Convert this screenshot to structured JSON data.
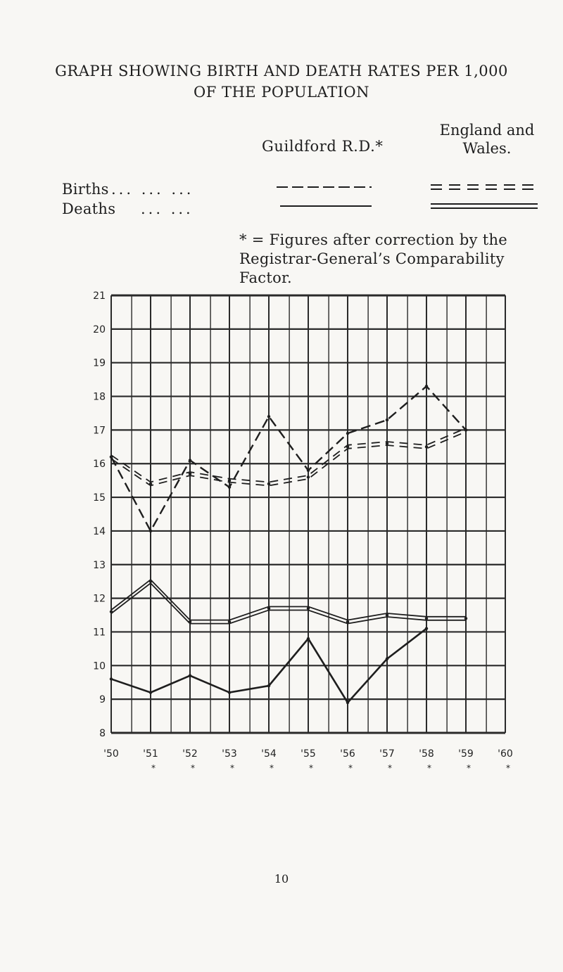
{
  "page": {
    "title_line1": "GRAPH SHOWING BIRTH AND DEATH RATES PER 1,000",
    "title_line2": "OF THE POPULATION",
    "page_number": "10"
  },
  "legend": {
    "col_guildford": "Guildford R.D.*",
    "col_england": "England and Wales.",
    "births_label": "Births",
    "deaths_label": "Deaths",
    "leader_dots": "... ... ...",
    "leader_dots_deaths": "... ...",
    "note": "* = Figures after correction by the Registrar-General’s Comparability Factor."
  },
  "colors": {
    "ink": "#1e1e1e",
    "grid": "#2a2a2a",
    "paper": "#f8f7f4"
  },
  "chart_data": {
    "type": "line",
    "title": "GRAPH SHOWING BIRTH AND DEATH RATES PER 1,000 OF THE POPULATION",
    "xlabel": "",
    "ylabel": "",
    "categories": [
      "'50",
      "'51",
      "'52",
      "'53",
      "'54",
      "'55",
      "'56",
      "'57",
      "'58",
      "'59",
      "'60"
    ],
    "asterisk_marks": [
      "",
      "*",
      "*",
      "*",
      "*",
      "*",
      "*",
      "*",
      "*",
      "*",
      "*"
    ],
    "ylim": [
      8,
      21
    ],
    "yticks": [
      8,
      9,
      10,
      11,
      12,
      13,
      14,
      15,
      16,
      17,
      18,
      19,
      20,
      21
    ],
    "grid": true,
    "series": [
      {
        "name": "Births",
        "group": "Guildford R.D.",
        "style": "dashed",
        "values": [
          16.2,
          14.0,
          16.1,
          15.3,
          17.4,
          15.8,
          16.9,
          17.3,
          18.3,
          17.0,
          null
        ]
      },
      {
        "name": "Births",
        "group": "England and Wales",
        "style": "double-dashed",
        "values": [
          16.2,
          15.4,
          15.7,
          15.5,
          15.4,
          15.6,
          16.5,
          16.6,
          16.5,
          17.0,
          null
        ]
      },
      {
        "name": "Deaths",
        "group": "Guildford R.D.",
        "style": "solid",
        "values": [
          9.6,
          9.2,
          9.7,
          9.2,
          9.4,
          10.8,
          8.9,
          10.2,
          11.1,
          null,
          null
        ]
      },
      {
        "name": "Deaths",
        "group": "England and Wales",
        "style": "double-solid",
        "values": [
          11.6,
          12.5,
          11.3,
          11.3,
          11.7,
          11.7,
          11.3,
          11.5,
          11.4,
          11.4,
          null
        ]
      }
    ]
  }
}
